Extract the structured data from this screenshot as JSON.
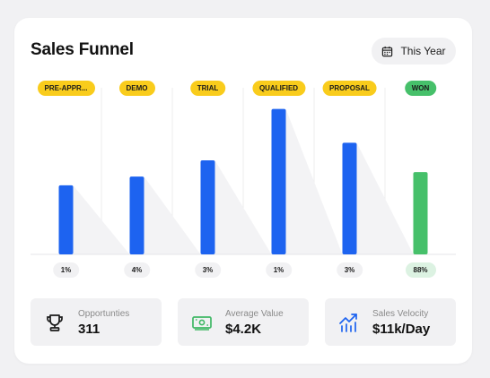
{
  "header": {
    "title": "Sales Funnel",
    "range_label": "This Year",
    "range_icon": "calendar-icon"
  },
  "colors": {
    "bar": "#1d63f0",
    "bar_final": "#46c06a",
    "stage_badge": "#f9cc1c",
    "stage_badge_final": "#46c06a",
    "rate_badge_final": "#dcf2e2",
    "background": "#f1f1f3"
  },
  "chart_data": {
    "type": "bar",
    "categories": [
      "PRE-APPR...",
      "DEMO",
      "TRIAL",
      "QUALIFIED",
      "PROPOSAL",
      "WON"
    ],
    "values": [
      47,
      53,
      64,
      99,
      76,
      56
    ],
    "conversion_rates": [
      "1%",
      "4%",
      "3%",
      "1%",
      "3%",
      "88%"
    ],
    "highlight_last": true
  },
  "stats": [
    {
      "icon": "trophy-icon",
      "label": "Opportunties",
      "value": "311"
    },
    {
      "icon": "cash-icon",
      "label": "Average Value",
      "value": "$4.2K"
    },
    {
      "icon": "trend-up-icon",
      "label": "Sales Velocity",
      "value": "$11k/Day"
    }
  ]
}
